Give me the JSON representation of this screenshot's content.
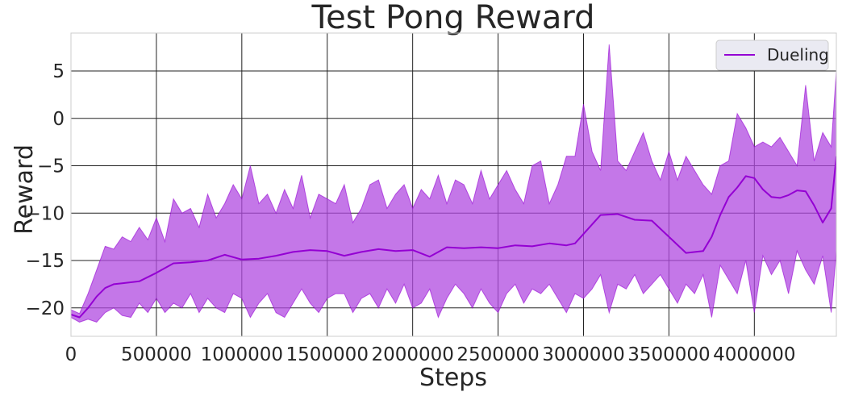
{
  "chart_data": {
    "type": "line",
    "title": "Test Pong Reward",
    "xlabel": "Steps",
    "ylabel": "Reward",
    "xlim": [
      0,
      4480000
    ],
    "ylim": [
      -23,
      9
    ],
    "xticks": [
      0,
      500000,
      1000000,
      1500000,
      2000000,
      2500000,
      3000000,
      3500000,
      4000000
    ],
    "xtick_labels": [
      "0",
      "500000",
      "1000000",
      "1500000",
      "2000000",
      "2500000",
      "3000000",
      "3500000",
      "4000000"
    ],
    "yticks": [
      -20,
      -15,
      -10,
      -5,
      0,
      5
    ],
    "ytick_labels": [
      "−20",
      "−15",
      "−10",
      "−5",
      "0",
      "5"
    ],
    "grid": true,
    "legend_position": "top-right",
    "series": [
      {
        "name": "Dueling",
        "color": "#9400d3",
        "band_color": "#b04ae0",
        "smoothed": {
          "x": [
            0,
            50000,
            100000,
            150000,
            200000,
            250000,
            300000,
            400000,
            500000,
            600000,
            700000,
            800000,
            900000,
            1000000,
            1100000,
            1200000,
            1300000,
            1400000,
            1500000,
            1600000,
            1700000,
            1800000,
            1900000,
            2000000,
            2100000,
            2200000,
            2300000,
            2400000,
            2500000,
            2600000,
            2700000,
            2800000,
            2900000,
            2950000,
            3000000,
            3100000,
            3200000,
            3300000,
            3400000,
            3500000,
            3600000,
            3700000,
            3750000,
            3800000,
            3850000,
            3900000,
            3950000,
            4000000,
            4050000,
            4100000,
            4150000,
            4200000,
            4250000,
            4300000,
            4350000,
            4400000,
            4450000,
            4480000
          ],
          "y": [
            -20.7,
            -21.0,
            -20.0,
            -18.8,
            -17.9,
            -17.5,
            -17.4,
            -17.2,
            -16.3,
            -15.3,
            -15.2,
            -15.0,
            -14.4,
            -14.9,
            -14.8,
            -14.5,
            -14.1,
            -13.9,
            -14.0,
            -14.5,
            -14.1,
            -13.8,
            -14.0,
            -13.9,
            -14.6,
            -13.6,
            -13.7,
            -13.6,
            -13.7,
            -13.4,
            -13.5,
            -13.2,
            -13.4,
            -13.2,
            -12.2,
            -10.2,
            -10.1,
            -10.7,
            -10.8,
            -12.5,
            -14.2,
            -14.0,
            -12.5,
            -10.2,
            -8.3,
            -7.3,
            -6.1,
            -6.3,
            -7.5,
            -8.3,
            -8.4,
            -8.1,
            -7.6,
            -7.7,
            -9.2,
            -11.0,
            -9.5,
            -4.0
          ]
        },
        "upper": {
          "x": [
            0,
            50000,
            100000,
            150000,
            200000,
            250000,
            300000,
            350000,
            400000,
            450000,
            500000,
            550000,
            600000,
            650000,
            700000,
            750000,
            800000,
            850000,
            900000,
            950000,
            1000000,
            1050000,
            1100000,
            1150000,
            1200000,
            1250000,
            1300000,
            1350000,
            1400000,
            1450000,
            1500000,
            1550000,
            1600000,
            1650000,
            1700000,
            1750000,
            1800000,
            1850000,
            1900000,
            1950000,
            2000000,
            2050000,
            2100000,
            2150000,
            2200000,
            2250000,
            2300000,
            2350000,
            2400000,
            2450000,
            2500000,
            2550000,
            2600000,
            2650000,
            2700000,
            2750000,
            2800000,
            2850000,
            2900000,
            2950000,
            3000000,
            3050000,
            3100000,
            3150000,
            3200000,
            3250000,
            3300000,
            3350000,
            3400000,
            3450000,
            3500000,
            3550000,
            3600000,
            3650000,
            3700000,
            3750000,
            3800000,
            3850000,
            3900000,
            3950000,
            4000000,
            4050000,
            4100000,
            4150000,
            4200000,
            4250000,
            4300000,
            4350000,
            4400000,
            4450000,
            4480000
          ],
          "y": [
            -20.2,
            -20.6,
            -18.5,
            -16.0,
            -13.5,
            -13.8,
            -12.5,
            -13.0,
            -11.5,
            -12.8,
            -10.5,
            -13.0,
            -8.5,
            -10.0,
            -9.5,
            -11.5,
            -8.0,
            -10.5,
            -9.0,
            -7.0,
            -8.5,
            -5.0,
            -9.0,
            -8.0,
            -10.0,
            -7.5,
            -9.5,
            -6.0,
            -10.5,
            -8.0,
            -8.5,
            -9.0,
            -7.0,
            -11.0,
            -9.5,
            -7.0,
            -6.5,
            -9.5,
            -8.0,
            -7.0,
            -9.5,
            -7.5,
            -8.5,
            -6.0,
            -9.0,
            -6.5,
            -7.0,
            -9.0,
            -5.5,
            -8.5,
            -7.0,
            -5.5,
            -7.5,
            -9.0,
            -5.0,
            -4.5,
            -9.0,
            -7.0,
            -4.0,
            -4.0,
            1.5,
            -3.5,
            -5.5,
            7.8,
            -4.5,
            -5.5,
            -3.5,
            -1.5,
            -4.5,
            -6.5,
            -3.5,
            -6.5,
            -4.0,
            -5.5,
            -7.0,
            -8.0,
            -5.0,
            -4.5,
            0.5,
            -1.0,
            -3.0,
            -2.5,
            -3.0,
            -2.0,
            -3.5,
            -5.0,
            3.5,
            -4.5,
            -1.5,
            -3.0,
            5.0
          ]
        },
        "lower": {
          "x": [
            0,
            50000,
            100000,
            150000,
            200000,
            250000,
            300000,
            350000,
            400000,
            450000,
            500000,
            550000,
            600000,
            650000,
            700000,
            750000,
            800000,
            850000,
            900000,
            950000,
            1000000,
            1050000,
            1100000,
            1150000,
            1200000,
            1250000,
            1300000,
            1350000,
            1400000,
            1450000,
            1500000,
            1550000,
            1600000,
            1650000,
            1700000,
            1750000,
            1800000,
            1850000,
            1900000,
            1950000,
            2000000,
            2050000,
            2100000,
            2150000,
            2200000,
            2250000,
            2300000,
            2350000,
            2400000,
            2450000,
            2500000,
            2550000,
            2600000,
            2650000,
            2700000,
            2750000,
            2800000,
            2850000,
            2900000,
            2950000,
            3000000,
            3050000,
            3100000,
            3150000,
            3200000,
            3250000,
            3300000,
            3350000,
            3400000,
            3450000,
            3500000,
            3550000,
            3600000,
            3650000,
            3700000,
            3750000,
            3800000,
            3850000,
            3900000,
            3950000,
            4000000,
            4050000,
            4100000,
            4150000,
            4200000,
            4250000,
            4300000,
            4350000,
            4400000,
            4450000,
            4480000
          ],
          "y": [
            -21.0,
            -21.5,
            -21.2,
            -21.5,
            -20.5,
            -20.0,
            -20.8,
            -21.0,
            -19.5,
            -20.5,
            -19.0,
            -20.5,
            -19.5,
            -20.0,
            -18.5,
            -20.5,
            -19.0,
            -20.0,
            -20.5,
            -18.5,
            -19.0,
            -21.0,
            -19.5,
            -18.5,
            -20.5,
            -21.0,
            -19.5,
            -18.0,
            -19.5,
            -20.5,
            -19.0,
            -18.5,
            -18.5,
            -20.5,
            -19.0,
            -18.5,
            -20.0,
            -18.0,
            -19.5,
            -17.5,
            -20.0,
            -19.5,
            -18.0,
            -21.0,
            -19.0,
            -17.5,
            -18.5,
            -20.0,
            -18.0,
            -19.5,
            -20.5,
            -18.5,
            -17.5,
            -19.5,
            -18.0,
            -18.5,
            -17.5,
            -19.0,
            -20.5,
            -18.5,
            -19.0,
            -18.0,
            -16.5,
            -20.5,
            -17.5,
            -18.0,
            -16.5,
            -18.5,
            -17.5,
            -16.5,
            -18.0,
            -19.5,
            -17.5,
            -18.5,
            -16.5,
            -21.0,
            -15.5,
            -17.0,
            -18.5,
            -15.0,
            -20.5,
            -14.5,
            -16.5,
            -15.0,
            -18.5,
            -14.0,
            -16.0,
            -17.5,
            -14.5,
            -20.5,
            -14.0
          ]
        }
      }
    ]
  }
}
